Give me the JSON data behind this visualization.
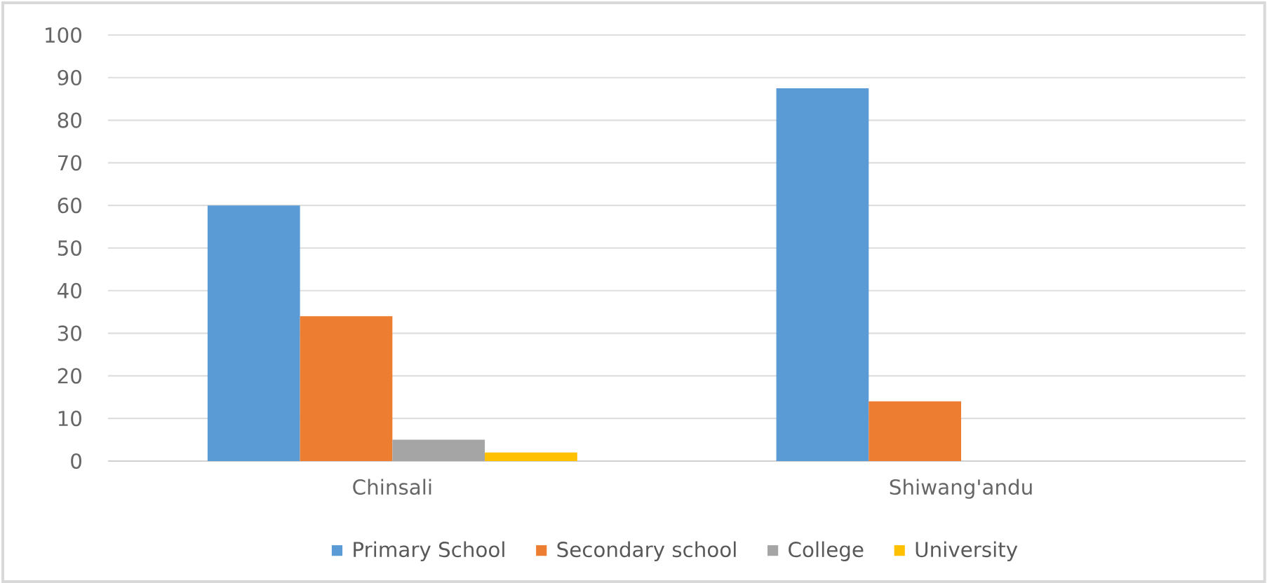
{
  "chart_data": {
    "type": "bar",
    "categories": [
      "Chinsali",
      "Shiwang'andu"
    ],
    "series": [
      {
        "name": "Primary School",
        "color": "#5b9bd5",
        "values": [
          60,
          87.5
        ]
      },
      {
        "name": "Secondary school",
        "color": "#ed7d31",
        "values": [
          34,
          14
        ]
      },
      {
        "name": "College",
        "color": "#a5a5a5",
        "values": [
          5,
          0
        ]
      },
      {
        "name": "University",
        "color": "#ffc000",
        "values": [
          2,
          0
        ]
      }
    ],
    "ylim": [
      0,
      100
    ],
    "yticks": [
      0,
      10,
      20,
      30,
      40,
      50,
      60,
      70,
      80,
      90,
      100
    ],
    "grid": "y",
    "legend": "bottom"
  }
}
